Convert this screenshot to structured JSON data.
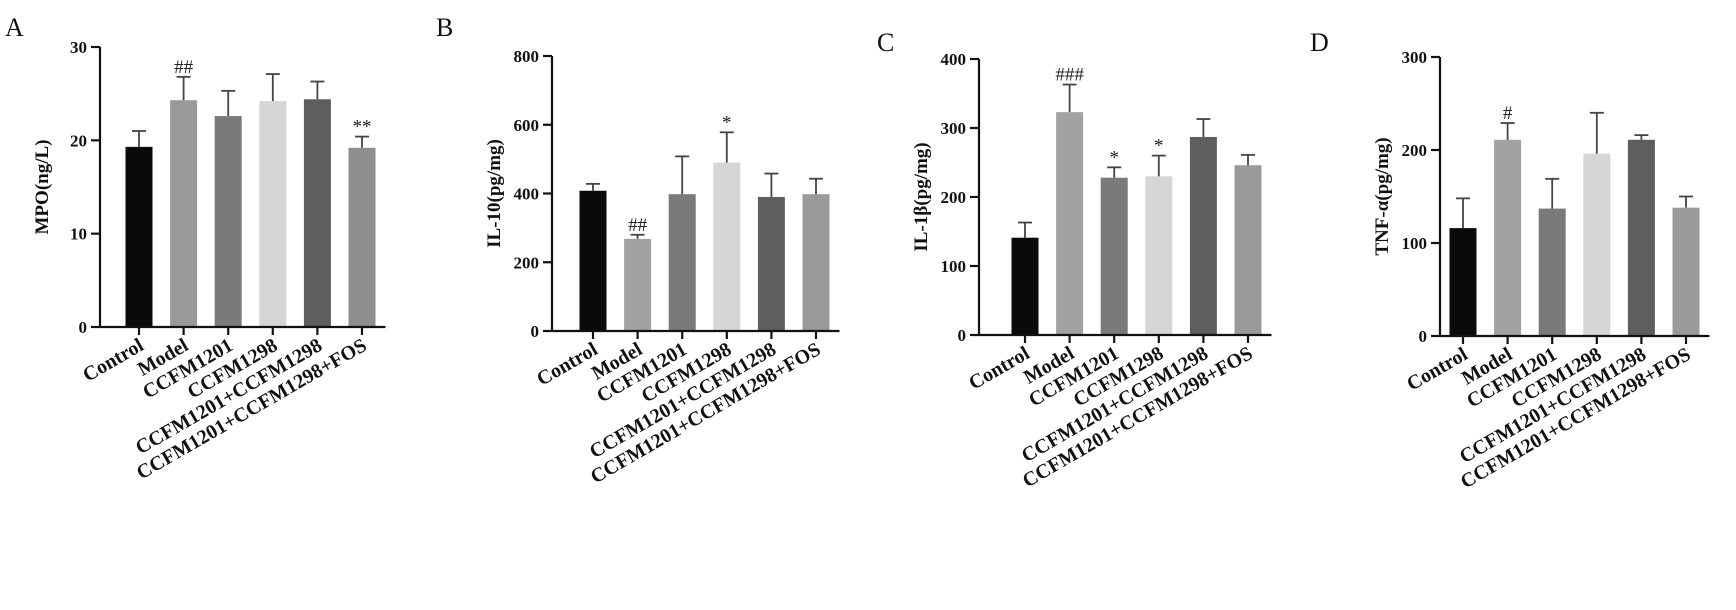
{
  "chart_data": [
    {
      "type": "bar",
      "panel": "A",
      "ylabel": "MPO(ng/L)",
      "ylim": [
        0,
        30
      ],
      "yticks": [
        0,
        10,
        20,
        30
      ],
      "categories": [
        "Control",
        "Model",
        "CCFM1201",
        "CCFM1298",
        "CCFM1201+CCFM1298",
        "CCFM1201+CCFM1298+FOS"
      ],
      "values": [
        19.3,
        24.3,
        22.6,
        24.2,
        24.4,
        19.2
      ],
      "errors": [
        1.7,
        2.5,
        2.7,
        2.9,
        1.9,
        1.2
      ],
      "significance": [
        "",
        "##",
        "",
        "",
        "",
        "**"
      ],
      "colors": [
        "#0a0a0a",
        "#9a9a9a",
        "#7a7a7a",
        "#d6d6d6",
        "#5e5e5e",
        "#8f8f8f"
      ]
    },
    {
      "type": "bar",
      "panel": "B",
      "ylabel": "IL-10(pg/mg)",
      "ylim": [
        0,
        800
      ],
      "yticks": [
        0,
        200,
        400,
        600,
        800
      ],
      "categories": [
        "Control",
        "Model",
        "CCFM1201",
        "CCFM1298",
        "CCFM1201+CCFM1298",
        "CCFM1201+CCFM1298+FOS"
      ],
      "values": [
        408,
        268,
        398,
        490,
        390,
        398
      ],
      "errors": [
        20,
        12,
        110,
        88,
        68,
        45
      ],
      "significance": [
        "",
        "##",
        "",
        "*",
        "",
        ""
      ],
      "colors": [
        "#0a0a0a",
        "#a2a2a2",
        "#7a7a7a",
        "#d6d6d6",
        "#5e5e5e",
        "#9a9a9a"
      ]
    },
    {
      "type": "bar",
      "panel": "C",
      "ylabel": "IL-1β(pg/mg)",
      "ylim": [
        0,
        400
      ],
      "yticks": [
        0,
        100,
        200,
        300,
        400
      ],
      "categories": [
        "Control",
        "Model",
        "CCFM1201",
        "CCFM1298",
        "CCFM1201+CCFM1298",
        "CCFM1201+CCFM1298+FOS"
      ],
      "values": [
        141,
        323,
        228,
        230,
        287,
        246
      ],
      "errors": [
        22,
        40,
        15,
        30,
        26,
        15
      ],
      "significance": [
        "",
        "###",
        "*",
        "*",
        "",
        ""
      ],
      "colors": [
        "#0a0a0a",
        "#a2a2a2",
        "#7a7a7a",
        "#d6d6d6",
        "#5e5e5e",
        "#9a9a9a"
      ]
    },
    {
      "type": "bar",
      "panel": "D",
      "ylabel": "TNF-α(pg/mg)",
      "ylim": [
        0,
        300
      ],
      "yticks": [
        0,
        100,
        200,
        300
      ],
      "categories": [
        "Control",
        "Model",
        "CCFM1201",
        "CCFM1298",
        "CCFM1201+CCFM1298",
        "CCFM1201+CCFM1298+FOS"
      ],
      "values": [
        116,
        211,
        137,
        196,
        211,
        138
      ],
      "errors": [
        32,
        18,
        32,
        44,
        5,
        12
      ],
      "significance": [
        "",
        "#",
        "",
        "",
        "",
        ""
      ],
      "colors": [
        "#0a0a0a",
        "#a2a2a2",
        "#7a7a7a",
        "#d6d6d6",
        "#5e5e5e",
        "#9a9a9a"
      ]
    }
  ]
}
